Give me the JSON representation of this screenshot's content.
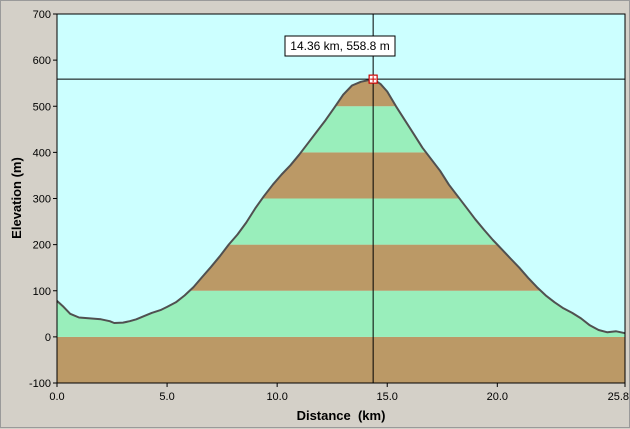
{
  "colors": {
    "plot_background": "#ccffff",
    "band_brown": "#bb9966",
    "band_green": "#99eebb",
    "profile_line": "#505050",
    "cursor_line": "#000000",
    "marker": "#cc0000",
    "frame_background": "#d4d0c8"
  },
  "chart_data": {
    "type": "area",
    "xlabel": "Distance  (km)",
    "ylabel": "Elevation (m)",
    "xlim": [
      0.0,
      25.8
    ],
    "ylim": [
      -100,
      700
    ],
    "x_ticks": [
      "0.0",
      "5.0",
      "10.0",
      "15.0",
      "20.0",
      "25.8"
    ],
    "y_ticks": [
      "-100",
      "0",
      "100",
      "200",
      "300",
      "400",
      "500",
      "600",
      "700"
    ],
    "elevation_bands": [
      {
        "from": -100,
        "to": 0,
        "color": "band_brown"
      },
      {
        "from": 0,
        "to": 100,
        "color": "band_green"
      },
      {
        "from": 100,
        "to": 200,
        "color": "band_brown"
      },
      {
        "from": 200,
        "to": 300,
        "color": "band_green"
      },
      {
        "from": 300,
        "to": 400,
        "color": "band_brown"
      },
      {
        "from": 400,
        "to": 500,
        "color": "band_green"
      },
      {
        "from": 500,
        "to": 600,
        "color": "band_brown"
      }
    ],
    "series": [
      {
        "x": [
          0.0,
          0.3,
          0.6,
          1.0,
          1.5,
          2.0,
          2.4,
          2.6,
          3.0,
          3.3,
          3.6,
          3.9,
          4.3,
          4.7,
          5.0,
          5.4,
          5.8,
          6.2,
          6.6,
          7.0,
          7.4,
          7.8,
          8.2,
          8.6,
          9.0,
          9.4,
          9.8,
          10.2,
          10.6,
          11.0,
          11.4,
          11.8,
          12.2,
          12.6,
          13.0,
          13.4,
          13.8,
          14.36,
          14.7,
          15.0,
          15.4,
          15.8,
          16.2,
          16.6,
          17.0,
          17.4,
          17.8,
          18.2,
          18.6,
          19.0,
          19.4,
          19.8,
          20.2,
          20.6,
          21.0,
          21.4,
          21.8,
          22.2,
          22.6,
          23.0,
          23.4,
          23.8,
          24.2,
          24.6,
          25.0,
          25.4,
          25.8
        ],
        "y": [
          78,
          65,
          50,
          42,
          40,
          38,
          34,
          30,
          31,
          34,
          38,
          44,
          52,
          58,
          65,
          75,
          90,
          108,
          130,
          152,
          175,
          200,
          222,
          248,
          278,
          305,
          330,
          352,
          372,
          395,
          420,
          445,
          470,
          497,
          525,
          545,
          553,
          558.8,
          548,
          532,
          500,
          470,
          440,
          410,
          385,
          360,
          330,
          305,
          280,
          255,
          232,
          210,
          190,
          170,
          150,
          128,
          108,
          90,
          75,
          62,
          52,
          40,
          25,
          15,
          10,
          12,
          8
        ]
      }
    ],
    "cursor": {
      "x": 14.36,
      "y": 558.8
    },
    "annotation": "14.36 km, 558.8 m"
  }
}
